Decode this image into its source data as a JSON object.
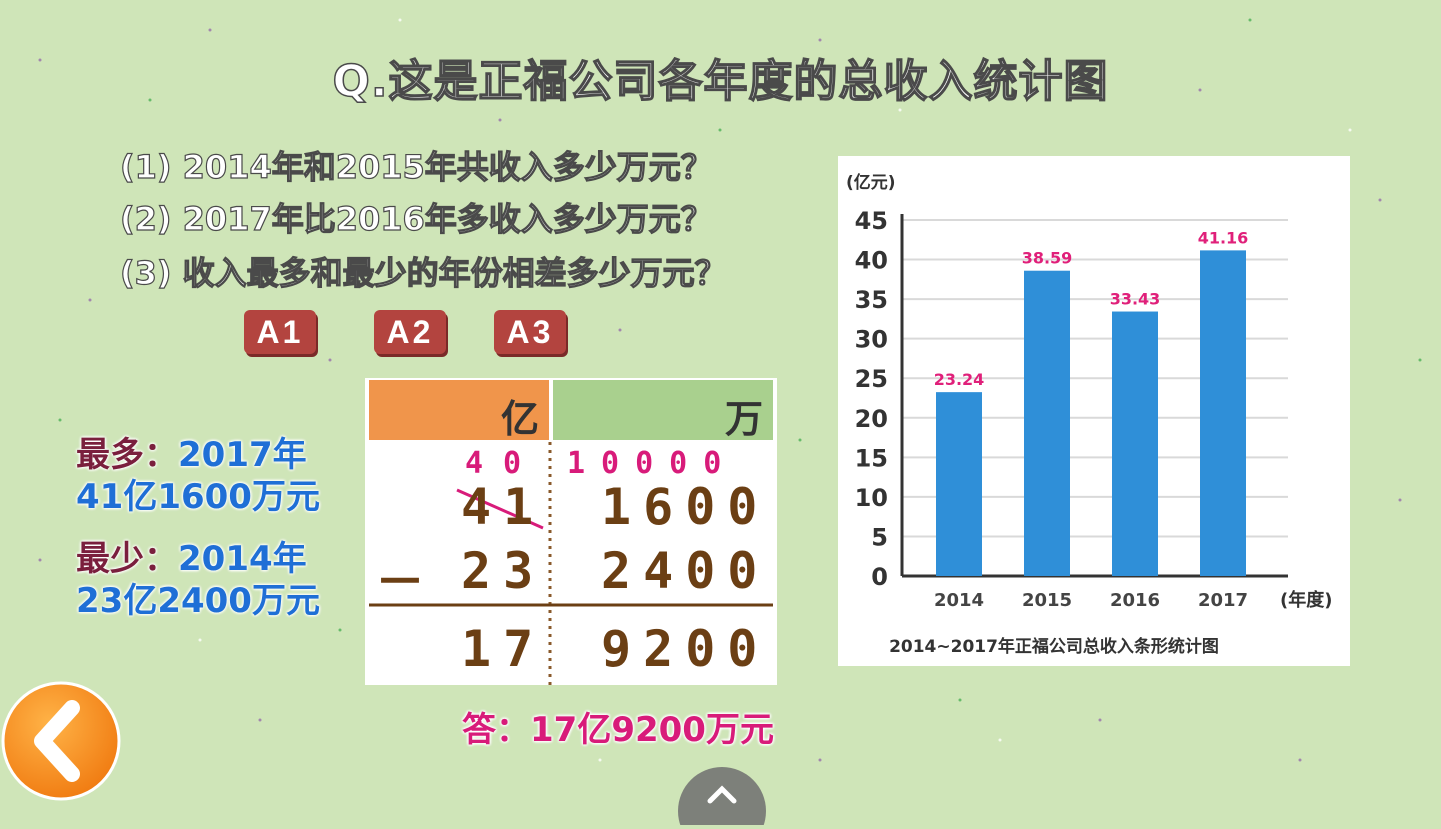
{
  "title": "Q.这是正福公司各年度的总收入统计图",
  "questions": [
    "(1) 2014年和2015年共收入多少万元？",
    "(2) 2017年比2016年多收入多少万元？",
    "(3) 收入最多和最少的年份相差多少万元？"
  ],
  "answer_buttons": [
    "A1",
    "A2",
    "A3"
  ],
  "most": {
    "label": "最多：",
    "year": "2017年",
    "amount": "41亿1600万元"
  },
  "least": {
    "label": "最少：",
    "year": "2014年",
    "amount": "23亿2400万元"
  },
  "calc": {
    "header_yi": "亿",
    "header_wan": "万",
    "borrow_yi": "40",
    "borrow_wan": "10000",
    "minuend_yi": "41",
    "minuend_wan": "1600",
    "minus_sign": "－",
    "subtrahend_yi": "23",
    "subtrahend_wan": "2400",
    "result_yi": "17",
    "result_wan": "9200"
  },
  "answer": {
    "prefix": "答：",
    "value": "17亿9200万元"
  },
  "chart_data": {
    "type": "bar",
    "categories": [
      "2014",
      "2015",
      "2016",
      "2017"
    ],
    "values": [
      23.24,
      38.59,
      33.43,
      41.16
    ],
    "value_labels": [
      "23.24",
      "38.59",
      "33.43",
      "41.16"
    ],
    "y_ticks": [
      "0",
      "5",
      "10",
      "15",
      "20",
      "25",
      "30",
      "35",
      "40",
      "45"
    ],
    "ylim": [
      0,
      45
    ],
    "ylabel": "(亿元)",
    "xlabel": "(年度)",
    "title": "2014~2017年正福公司总收入条形统计图",
    "grid": true,
    "bar_color": "#2f8fd8",
    "label_color": "#e0207a"
  },
  "icons": {
    "back": "chevron-left-icon",
    "up": "chevron-up-icon"
  },
  "colors": {
    "background": "#cfe5b8",
    "button": "#b3443f",
    "accent": "#f58220"
  }
}
